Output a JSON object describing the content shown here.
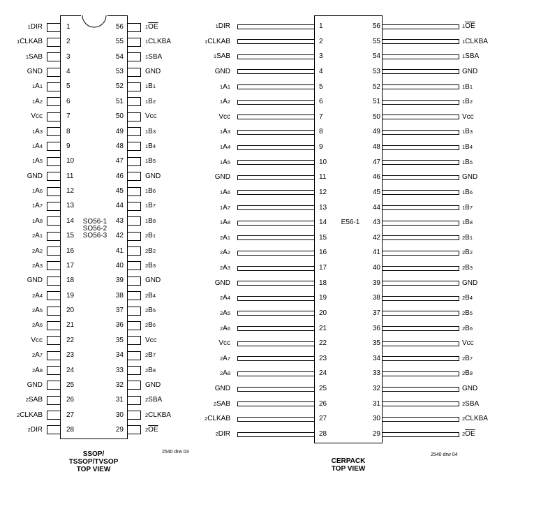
{
  "pins_left": [
    {
      "num": "1",
      "prefix": "1",
      "main": "DIR"
    },
    {
      "num": "2",
      "prefix": "1",
      "main": "CLKAB"
    },
    {
      "num": "3",
      "prefix": "1",
      "main": "SAB"
    },
    {
      "num": "4",
      "prefix": "",
      "main": "GND"
    },
    {
      "num": "5",
      "prefix": "1",
      "main": "A",
      "suffix": "1"
    },
    {
      "num": "6",
      "prefix": "1",
      "main": "A",
      "suffix": "2"
    },
    {
      "num": "7",
      "prefix": "",
      "main": "Vcc"
    },
    {
      "num": "8",
      "prefix": "1",
      "main": "A",
      "suffix": "3"
    },
    {
      "num": "9",
      "prefix": "1",
      "main": "A",
      "suffix": "4"
    },
    {
      "num": "10",
      "prefix": "1",
      "main": "A",
      "suffix": "5"
    },
    {
      "num": "11",
      "prefix": "",
      "main": "GND"
    },
    {
      "num": "12",
      "prefix": "1",
      "main": "A",
      "suffix": "6"
    },
    {
      "num": "13",
      "prefix": "1",
      "main": "A",
      "suffix": "7"
    },
    {
      "num": "14",
      "prefix": "1",
      "main": "A",
      "suffix": "8"
    },
    {
      "num": "15",
      "prefix": "2",
      "main": "A",
      "suffix": "1"
    },
    {
      "num": "16",
      "prefix": "2",
      "main": "A",
      "suffix": "2"
    },
    {
      "num": "17",
      "prefix": "2",
      "main": "A",
      "suffix": "3"
    },
    {
      "num": "18",
      "prefix": "",
      "main": "GND"
    },
    {
      "num": "19",
      "prefix": "2",
      "main": "A",
      "suffix": "4"
    },
    {
      "num": "20",
      "prefix": "2",
      "main": "A",
      "suffix": "5"
    },
    {
      "num": "21",
      "prefix": "2",
      "main": "A",
      "suffix": "6"
    },
    {
      "num": "22",
      "prefix": "",
      "main": "Vcc"
    },
    {
      "num": "23",
      "prefix": "2",
      "main": "A",
      "suffix": "7"
    },
    {
      "num": "24",
      "prefix": "2",
      "main": "A",
      "suffix": "8"
    },
    {
      "num": "25",
      "prefix": "",
      "main": "GND"
    },
    {
      "num": "26",
      "prefix": "2",
      "main": "SAB"
    },
    {
      "num": "27",
      "prefix": "2",
      "main": "CLKAB"
    },
    {
      "num": "28",
      "prefix": "2",
      "main": "DIR"
    }
  ],
  "pins_right": [
    {
      "num": "56",
      "prefix": "1",
      "main": "OE",
      "overline": true
    },
    {
      "num": "55",
      "prefix": "1",
      "main": "CLKBA"
    },
    {
      "num": "54",
      "prefix": "1",
      "main": "SBA"
    },
    {
      "num": "53",
      "prefix": "",
      "main": "GND"
    },
    {
      "num": "52",
      "prefix": "1",
      "main": "B",
      "suffix": "1"
    },
    {
      "num": "51",
      "prefix": "1",
      "main": "B",
      "suffix": "2"
    },
    {
      "num": "50",
      "prefix": "",
      "main": "Vcc"
    },
    {
      "num": "49",
      "prefix": "1",
      "main": "B",
      "suffix": "3"
    },
    {
      "num": "48",
      "prefix": "1",
      "main": "B",
      "suffix": "4"
    },
    {
      "num": "47",
      "prefix": "1",
      "main": "B",
      "suffix": "5"
    },
    {
      "num": "46",
      "prefix": "",
      "main": "GND"
    },
    {
      "num": "45",
      "prefix": "1",
      "main": "B",
      "suffix": "6"
    },
    {
      "num": "44",
      "prefix": "1",
      "main": "B",
      "suffix": "7"
    },
    {
      "num": "43",
      "prefix": "1",
      "main": "B",
      "suffix": "8"
    },
    {
      "num": "42",
      "prefix": "2",
      "main": "B",
      "suffix": "1"
    },
    {
      "num": "41",
      "prefix": "2",
      "main": "B",
      "suffix": "2"
    },
    {
      "num": "40",
      "prefix": "2",
      "main": "B",
      "suffix": "3"
    },
    {
      "num": "39",
      "prefix": "",
      "main": "GND"
    },
    {
      "num": "38",
      "prefix": "2",
      "main": "B",
      "suffix": "4"
    },
    {
      "num": "37",
      "prefix": "2",
      "main": "B",
      "suffix": "5"
    },
    {
      "num": "36",
      "prefix": "2",
      "main": "B",
      "suffix": "6"
    },
    {
      "num": "35",
      "prefix": "",
      "main": "Vcc"
    },
    {
      "num": "34",
      "prefix": "2",
      "main": "B",
      "suffix": "7"
    },
    {
      "num": "33",
      "prefix": "2",
      "main": "B",
      "suffix": "8"
    },
    {
      "num": "32",
      "prefix": "",
      "main": "GND"
    },
    {
      "num": "31",
      "prefix": "2",
      "main": "SBA"
    },
    {
      "num": "30",
      "prefix": "2",
      "main": "CLKBA"
    },
    {
      "num": "29",
      "prefix": "2",
      "main": "OE",
      "overline": true
    }
  ],
  "ssop": {
    "package_codes": [
      "SO56-1",
      "SO56-2",
      "SO56-3"
    ],
    "caption": [
      "SSOP/",
      "TSSOP/TVSOP",
      "TOP VIEW"
    ],
    "drawing_ref": "2540 drw 03"
  },
  "cerpack": {
    "package_code": "E56-1",
    "caption": [
      "CERPACK",
      "TOP VIEW"
    ],
    "drawing_ref": "2540 drw 04"
  }
}
